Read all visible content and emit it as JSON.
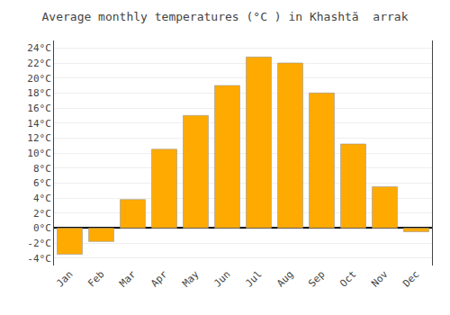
{
  "chart_data": {
    "type": "bar",
    "title": "Average monthly temperatures (°C ) in Khashtă  arrak",
    "categories": [
      "Jan",
      "Feb",
      "Mar",
      "Apr",
      "May",
      "Jun",
      "Jul",
      "Aug",
      "Sep",
      "Oct",
      "Nov",
      "Dec"
    ],
    "values": [
      -3.5,
      -1.8,
      3.8,
      10.5,
      15.0,
      19.0,
      22.8,
      22.0,
      18.0,
      11.2,
      5.5,
      -0.5
    ],
    "color": "#FFAA00",
    "ylim": [
      -5,
      25
    ],
    "yticks": [
      {
        "value": -4,
        "label": "-4°C"
      },
      {
        "value": -2,
        "label": "-2°C"
      },
      {
        "value": 0,
        "label": "0°C"
      },
      {
        "value": 2,
        "label": "2°C"
      },
      {
        "value": 4,
        "label": "4°C"
      },
      {
        "value": 6,
        "label": "6°C"
      },
      {
        "value": 8,
        "label": "8°C"
      },
      {
        "value": 10,
        "label": "10°C"
      },
      {
        "value": 12,
        "label": "12°C"
      },
      {
        "value": 14,
        "label": "14°C"
      },
      {
        "value": 16,
        "label": "16°C"
      },
      {
        "value": 18,
        "label": "18°C"
      },
      {
        "value": 20,
        "label": "20°C"
      },
      {
        "value": 22,
        "label": "22°C"
      },
      {
        "value": 24,
        "label": "24°C"
      }
    ],
    "grid": true
  }
}
